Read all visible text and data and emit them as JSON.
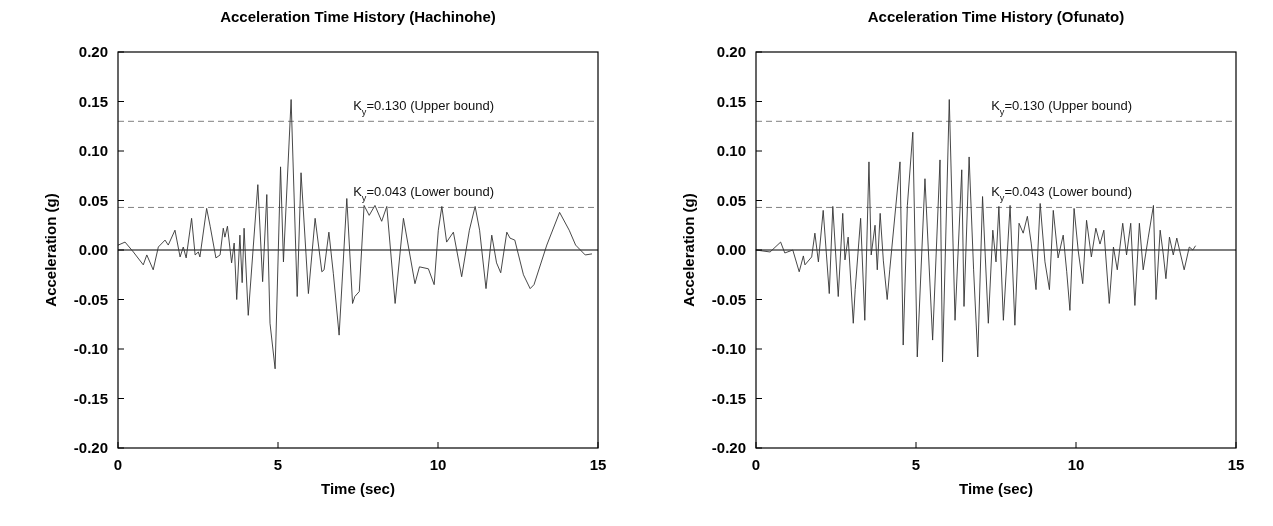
{
  "chart_data": [
    {
      "type": "line",
      "title": "Acceleration Time History (Hachinohe)",
      "xlabel": "Time (sec)",
      "ylabel": "Acceleration (g)",
      "color": "#333333",
      "x": [
        0.01,
        0.22,
        0.48,
        0.79,
        0.9,
        1.1,
        1.26,
        1.47,
        1.57,
        1.78,
        1.94,
        2.04,
        2.13,
        2.3,
        2.41,
        2.51,
        2.56,
        2.77,
        2.88,
        3.06,
        3.19,
        3.29,
        3.34,
        3.42,
        3.55,
        3.63,
        3.71,
        3.81,
        3.88,
        3.94,
        4.07,
        4.37,
        4.52,
        4.65,
        4.75,
        4.91,
        5.08,
        5.17,
        5.41,
        5.6,
        5.72,
        5.95,
        6.16,
        6.37,
        6.44,
        6.59,
        6.73,
        6.91,
        7.15,
        7.33,
        7.4,
        7.54,
        7.69,
        7.85,
        8.03,
        8.24,
        8.4,
        8.66,
        8.92,
        9.28,
        9.42,
        9.7,
        9.88,
        10.01,
        10.12,
        10.27,
        10.48,
        10.74,
        10.98,
        11.16,
        11.3,
        11.5,
        11.68,
        11.83,
        11.96,
        12.15,
        12.25,
        12.4,
        12.67,
        12.88,
        13.0,
        13.4,
        13.8,
        14.1,
        14.3,
        14.6,
        14.8
      ],
      "values": [
        0.005,
        0.008,
        -0.002,
        -0.015,
        -0.005,
        -0.02,
        0.003,
        0.01,
        0.005,
        0.02,
        -0.007,
        0.003,
        -0.008,
        0.032,
        -0.005,
        -0.002,
        -0.007,
        0.042,
        0.024,
        -0.008,
        -0.005,
        0.022,
        0.013,
        0.024,
        -0.013,
        0.007,
        -0.05,
        0.015,
        -0.033,
        0.022,
        -0.066,
        0.066,
        -0.032,
        0.056,
        -0.074,
        -0.12,
        0.084,
        -0.012,
        0.152,
        -0.047,
        0.078,
        -0.044,
        0.032,
        -0.022,
        -0.02,
        0.018,
        -0.024,
        -0.086,
        0.052,
        -0.054,
        -0.047,
        -0.042,
        0.045,
        0.035,
        0.045,
        0.029,
        0.044,
        -0.054,
        0.032,
        -0.034,
        -0.017,
        -0.019,
        -0.035,
        0.02,
        0.044,
        0.008,
        0.018,
        -0.027,
        0.02,
        0.044,
        0.02,
        -0.039,
        0.015,
        -0.013,
        -0.023,
        0.018,
        0.012,
        0.01,
        -0.025,
        -0.039,
        -0.035,
        0.005,
        0.038,
        0.02,
        0.005,
        -0.005,
        -0.004
      ],
      "xlim": [
        0,
        15
      ],
      "ylim": [
        -0.2,
        0.2
      ],
      "xticks": [
        0,
        5,
        10,
        15
      ],
      "yticks": [
        {
          "value": -0.2,
          "label": "-0.20"
        },
        {
          "value": -0.15,
          "label": "-0.15"
        },
        {
          "value": -0.1,
          "label": "-0.10"
        },
        {
          "value": -0.05,
          "label": "-0.05"
        },
        {
          "value": 0,
          "label": "0.00"
        },
        {
          "value": 0.05,
          "label": "0.05"
        },
        {
          "value": 0.1,
          "label": "0.10"
        },
        {
          "value": 0.15,
          "label": "0.15"
        },
        {
          "value": 0.2,
          "label": "0.20"
        }
      ],
      "ref_lines": [
        {
          "axis": "y",
          "value": 0,
          "color": "#000000",
          "line_style": "solid"
        },
        {
          "axis": "y",
          "value": 0.13,
          "label": "K$_{y}$=0.130 (Upper bound)",
          "color": "#808080",
          "line_style": "dashed"
        },
        {
          "axis": "y",
          "value": 0.043,
          "label": "K$_{y}$=0.043 (Lower bound)",
          "color": "#808080",
          "line_style": "dashed"
        }
      ]
    },
    {
      "type": "line",
      "title": "Acceleration Time History (Ofunato)",
      "xlabel": "Time (sec)",
      "ylabel": "Acceleration (g)",
      "color": "#333333",
      "x": [
        0,
        0.44,
        0.77,
        0.9,
        1.15,
        1.35,
        1.48,
        1.53,
        1.74,
        1.84,
        1.95,
        2.1,
        2.29,
        2.4,
        2.57,
        2.71,
        2.78,
        2.88,
        3.04,
        3.1,
        3.27,
        3.4,
        3.53,
        3.6,
        3.72,
        3.79,
        3.88,
        3.98,
        4.1,
        4.18,
        4.5,
        4.6,
        4.73,
        4.9,
        5.04,
        5.28,
        5.52,
        5.75,
        5.83,
        6.04,
        6.22,
        6.43,
        6.5,
        6.66,
        6.8,
        6.93,
        7.08,
        7.26,
        7.4,
        7.5,
        7.59,
        7.73,
        7.94,
        8.09,
        8.22,
        8.35,
        8.48,
        8.6,
        8.75,
        8.88,
        9.03,
        9.17,
        9.29,
        9.44,
        9.6,
        9.71,
        9.81,
        9.94,
        10.07,
        10.21,
        10.33,
        10.48,
        10.62,
        10.75,
        10.87,
        11.04,
        11.17,
        11.29,
        11.46,
        11.58,
        11.71,
        11.84,
        11.98,
        12.1,
        12.26,
        12.42,
        12.5,
        12.63,
        12.73,
        12.81,
        12.92,
        13.04,
        13.15,
        13.38,
        13.54,
        13.65,
        13.73
      ],
      "values": [
        0,
        -0.002,
        0.008,
        -0.003,
        0,
        -0.022,
        -0.006,
        -0.015,
        -0.007,
        0.017,
        -0.012,
        0.04,
        -0.044,
        0.044,
        -0.047,
        0.037,
        -0.01,
        0.013,
        -0.074,
        -0.04,
        0.032,
        -0.071,
        0.089,
        -0.005,
        0.025,
        -0.02,
        0.037,
        -0.011,
        -0.05,
        -0.02,
        0.089,
        -0.096,
        0.045,
        0.119,
        -0.108,
        0.072,
        -0.091,
        0.091,
        -0.113,
        0.152,
        -0.071,
        0.081,
        -0.057,
        0.094,
        -0.02,
        -0.108,
        0.054,
        -0.074,
        0.02,
        -0.012,
        0.044,
        -0.071,
        0.045,
        -0.076,
        0.027,
        0.017,
        0.034,
        0.007,
        -0.04,
        0.047,
        -0.012,
        -0.04,
        0.04,
        -0.008,
        0.015,
        -0.022,
        -0.061,
        0.042,
        -0.001,
        -0.034,
        0.03,
        -0.007,
        0.022,
        0.006,
        0.02,
        -0.054,
        0.003,
        -0.02,
        0.027,
        -0.005,
        0.027,
        -0.056,
        0.027,
        -0.02,
        0.013,
        0.045,
        -0.05,
        0.02,
        -0.005,
        -0.029,
        0.013,
        -0.005,
        0.012,
        -0.02,
        0.003,
        0,
        0.004
      ],
      "xlim": [
        0,
        15
      ],
      "ylim": [
        -0.2,
        0.2
      ],
      "xticks": [
        0,
        5,
        10,
        15
      ],
      "yticks": [
        {
          "value": -0.2,
          "label": "-0.20"
        },
        {
          "value": -0.15,
          "label": "-0.15"
        },
        {
          "value": -0.1,
          "label": "-0.10"
        },
        {
          "value": -0.05,
          "label": "-0.05"
        },
        {
          "value": 0,
          "label": "0.00"
        },
        {
          "value": 0.05,
          "label": "0.05"
        },
        {
          "value": 0.1,
          "label": "0.10"
        },
        {
          "value": 0.15,
          "label": "0.15"
        },
        {
          "value": 0.2,
          "label": "0.20"
        }
      ],
      "ref_lines": [
        {
          "axis": "y",
          "value": 0,
          "color": "#000000",
          "line_style": "solid"
        },
        {
          "axis": "y",
          "value": 0.13,
          "label": "K$_{y}$=0.130 (Upper bound)",
          "color": "#808080",
          "line_style": "dashed"
        },
        {
          "axis": "y",
          "value": 0.043,
          "label": "K$_{y}$=0.043 (Lower bound)",
          "color": "#808080",
          "line_style": "dashed"
        }
      ]
    }
  ]
}
